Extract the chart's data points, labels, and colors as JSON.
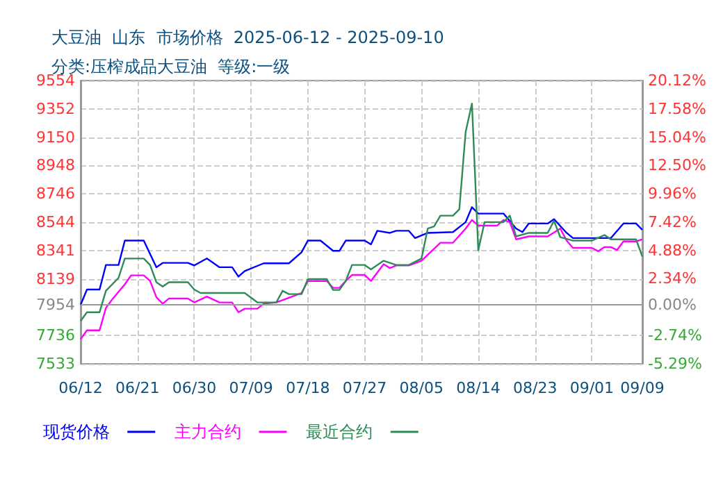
{
  "chart_data": {
    "type": "line",
    "title": "大豆油  山东  市场价格  2025-06-12 - 2025-09-10",
    "subtitle": "分类:压榨成品大豆油  等级:一级",
    "xlim": [
      "2025-06-12",
      "2025-09-09"
    ],
    "xticks": [
      {
        "value": "2025-06-12",
        "label": "06/12"
      },
      {
        "value": "2025-06-21",
        "label": "06/21"
      },
      {
        "value": "2025-06-30",
        "label": "06/30"
      },
      {
        "value": "2025-07-09",
        "label": "07/09"
      },
      {
        "value": "2025-07-18",
        "label": "07/18"
      },
      {
        "value": "2025-07-27",
        "label": "07/27"
      },
      {
        "value": "2025-08-05",
        "label": "08/05"
      },
      {
        "value": "2025-08-14",
        "label": "08/14"
      },
      {
        "value": "2025-08-23",
        "label": "08/23"
      },
      {
        "value": "2025-09-01",
        "label": "09/01"
      },
      {
        "value": "2025-09-09",
        "label": "09/09"
      }
    ],
    "ylim": [
      7533,
      9554
    ],
    "yticks": [
      7533,
      7736,
      7954,
      8139,
      8341,
      8544,
      8746,
      8948,
      9150,
      9352,
      9554
    ],
    "y2lim": [
      -5.29,
      20.12
    ],
    "y2ticks": [
      {
        "value": -5.29,
        "label": "-5.29%"
      },
      {
        "value": -2.74,
        "label": "-2.74%"
      },
      {
        "value": 0,
        "label": "0.00%"
      },
      {
        "value": 2.34,
        "label": "2.34%"
      },
      {
        "value": 4.88,
        "label": "4.88%"
      },
      {
        "value": 7.42,
        "label": "7.42%"
      },
      {
        "value": 9.96,
        "label": "9.96%"
      },
      {
        "value": 12.5,
        "label": "12.50%"
      },
      {
        "value": 15.04,
        "label": "15.04%"
      },
      {
        "value": 17.58,
        "label": "17.58%"
      },
      {
        "value": 20.12,
        "label": "20.12%"
      }
    ],
    "ref_lines": [
      {
        "axis": "y2",
        "value": 0,
        "color": "#999999"
      }
    ],
    "grid": true,
    "legend": "bottom left",
    "marker": "none",
    "line_style": "solid",
    "series": [
      {
        "name": "现货价格",
        "color": "#0000ff",
        "x": [
          "2025-06-12",
          "2025-06-13",
          "2025-06-15",
          "2025-06-16",
          "2025-06-18",
          "2025-06-19",
          "2025-06-22",
          "2025-06-24",
          "2025-06-25",
          "2025-06-29",
          "2025-06-30",
          "2025-07-02",
          "2025-07-04",
          "2025-07-06",
          "2025-07-07",
          "2025-07-08",
          "2025-07-11",
          "2025-07-15",
          "2025-07-17",
          "2025-07-18",
          "2025-07-20",
          "2025-07-22",
          "2025-07-23",
          "2025-07-24",
          "2025-07-27",
          "2025-07-28",
          "2025-07-29",
          "2025-07-31",
          "2025-08-01",
          "2025-08-03",
          "2025-08-04",
          "2025-08-06",
          "2025-08-10",
          "2025-08-12",
          "2025-08-13",
          "2025-08-14",
          "2025-08-18",
          "2025-08-20",
          "2025-08-21",
          "2025-08-22",
          "2025-08-25",
          "2025-08-26",
          "2025-08-28",
          "2025-08-29",
          "2025-09-04",
          "2025-09-06",
          "2025-09-08",
          "2025-09-09"
        ],
        "values": [
          7954,
          8063,
          8063,
          8238,
          8238,
          8412,
          8412,
          8222,
          8253,
          8253,
          8235,
          8285,
          8222,
          8222,
          8155,
          8195,
          8250,
          8250,
          8329,
          8412,
          8412,
          8339,
          8339,
          8412,
          8412,
          8385,
          8482,
          8467,
          8482,
          8482,
          8430,
          8467,
          8473,
          8544,
          8651,
          8605,
          8605,
          8498,
          8473,
          8534,
          8534,
          8565,
          8467,
          8430,
          8430,
          8534,
          8534,
          8488
        ]
      },
      {
        "name": "主力合约",
        "color": "#ff00ff",
        "x": [
          "2025-06-12",
          "2025-06-13",
          "2025-06-15",
          "2025-06-16",
          "2025-06-17",
          "2025-06-19",
          "2025-06-20",
          "2025-06-22",
          "2025-06-23",
          "2025-06-24",
          "2025-06-25",
          "2025-06-26",
          "2025-06-29",
          "2025-06-30",
          "2025-07-02",
          "2025-07-04",
          "2025-07-06",
          "2025-07-07",
          "2025-07-08",
          "2025-07-10",
          "2025-07-11",
          "2025-07-13",
          "2025-07-17",
          "2025-07-18",
          "2025-07-21",
          "2025-07-22",
          "2025-07-23",
          "2025-07-24",
          "2025-07-25",
          "2025-07-27",
          "2025-07-28",
          "2025-07-30",
          "2025-07-31",
          "2025-08-01",
          "2025-08-03",
          "2025-08-05",
          "2025-08-08",
          "2025-08-10",
          "2025-08-12",
          "2025-08-13",
          "2025-08-14",
          "2025-08-17",
          "2025-08-18",
          "2025-08-19",
          "2025-08-20",
          "2025-08-22",
          "2025-08-25",
          "2025-08-27",
          "2025-08-28",
          "2025-08-29",
          "2025-09-01",
          "2025-09-02",
          "2025-09-03",
          "2025-09-04",
          "2025-09-05",
          "2025-09-06",
          "2025-09-08",
          "2025-09-09"
        ],
        "values": [
          7708,
          7772,
          7772,
          7931,
          7992,
          8100,
          8164,
          8164,
          8124,
          8008,
          7962,
          7999,
          7999,
          7971,
          8013,
          7971,
          7971,
          7901,
          7926,
          7926,
          7962,
          7971,
          8038,
          8124,
          8124,
          8075,
          8075,
          8124,
          8167,
          8167,
          8124,
          8244,
          8216,
          8235,
          8235,
          8268,
          8397,
          8397,
          8498,
          8559,
          8519,
          8519,
          8559,
          8544,
          8421,
          8442,
          8442,
          8498,
          8412,
          8360,
          8360,
          8336,
          8366,
          8366,
          8345,
          8406,
          8406,
          8421
        ]
      },
      {
        "name": "最近合约",
        "color": "#2e8b57",
        "x": [
          "2025-06-12",
          "2025-06-13",
          "2025-06-15",
          "2025-06-16",
          "2025-06-18",
          "2025-06-19",
          "2025-06-22",
          "2025-06-23",
          "2025-06-24",
          "2025-06-25",
          "2025-06-26",
          "2025-06-29",
          "2025-06-30",
          "2025-07-01",
          "2025-07-08",
          "2025-07-10",
          "2025-07-13",
          "2025-07-14",
          "2025-07-15",
          "2025-07-17",
          "2025-07-18",
          "2025-07-21",
          "2025-07-22",
          "2025-07-23",
          "2025-07-24",
          "2025-07-25",
          "2025-07-27",
          "2025-07-28",
          "2025-07-30",
          "2025-08-01",
          "2025-08-03",
          "2025-08-05",
          "2025-08-06",
          "2025-08-07",
          "2025-08-08",
          "2025-08-10",
          "2025-08-11",
          "2025-08-12",
          "2025-08-13",
          "2025-08-14",
          "2025-08-15",
          "2025-08-18",
          "2025-08-19",
          "2025-08-20",
          "2025-08-22",
          "2025-08-25",
          "2025-08-26",
          "2025-08-27",
          "2025-08-29",
          "2025-09-01",
          "2025-09-03",
          "2025-09-04",
          "2025-09-08",
          "2025-09-09"
        ],
        "values": [
          7839,
          7901,
          7901,
          8054,
          8146,
          8284,
          8284,
          8238,
          8115,
          8084,
          8115,
          8115,
          8063,
          8038,
          8038,
          7971,
          7971,
          8054,
          8030,
          8030,
          8137,
          8137,
          8060,
          8060,
          8124,
          8238,
          8238,
          8207,
          8268,
          8238,
          8238,
          8284,
          8498,
          8513,
          8590,
          8590,
          8636,
          9187,
          9390,
          8344,
          8544,
          8544,
          8590,
          8442,
          8467,
          8467,
          8553,
          8436,
          8412,
          8412,
          8452,
          8421,
          8421,
          8298
        ]
      }
    ]
  }
}
